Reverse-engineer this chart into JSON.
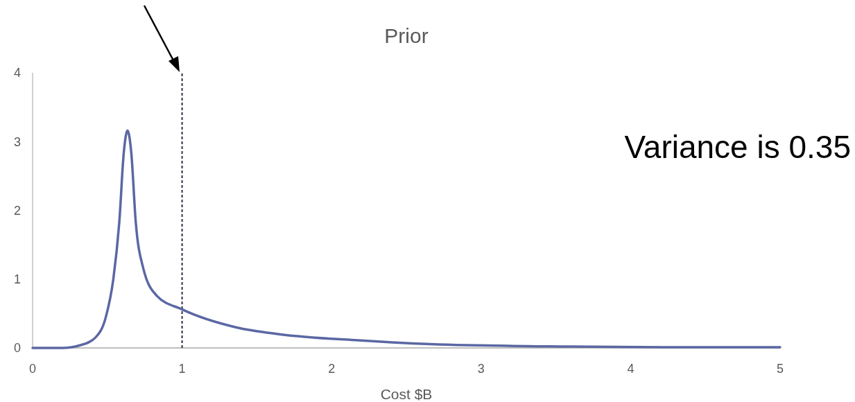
{
  "chart_data": {
    "type": "line",
    "title": "Prior",
    "xlabel": "Cost $B",
    "x": [
      0,
      0.2,
      0.32,
      0.42,
      0.49,
      0.54,
      0.58,
      0.61,
      0.635,
      0.66,
      0.69,
      0.74,
      0.83,
      1.0,
      1.36,
      1.65,
      2.18,
      2.72,
      3.6,
      4.3,
      5
    ],
    "series": [
      {
        "color": "#5b67a3",
        "values": [
          0,
          0,
          0.04,
          0.15,
          0.45,
          1.0,
          1.83,
          2.84,
          3.16,
          2.84,
          1.83,
          1.16,
          0.76,
          0.56,
          0.3,
          0.2,
          0.11,
          0.05,
          0.02,
          0.01,
          0.01
        ]
      }
    ],
    "xlim": [
      0,
      5
    ],
    "xticks": [
      0,
      1,
      2,
      3,
      4,
      5
    ],
    "ylim": [
      0,
      4
    ],
    "yticks": [
      0,
      1,
      2,
      3,
      4
    ],
    "grid": false,
    "marker": "none",
    "line_style": "solid",
    "ref_lines": [
      {
        "axis": "x",
        "value": 1,
        "line_style": "dashed",
        "color": "#2e3047"
      }
    ],
    "annotations": [
      "Variance is 0.35"
    ]
  }
}
